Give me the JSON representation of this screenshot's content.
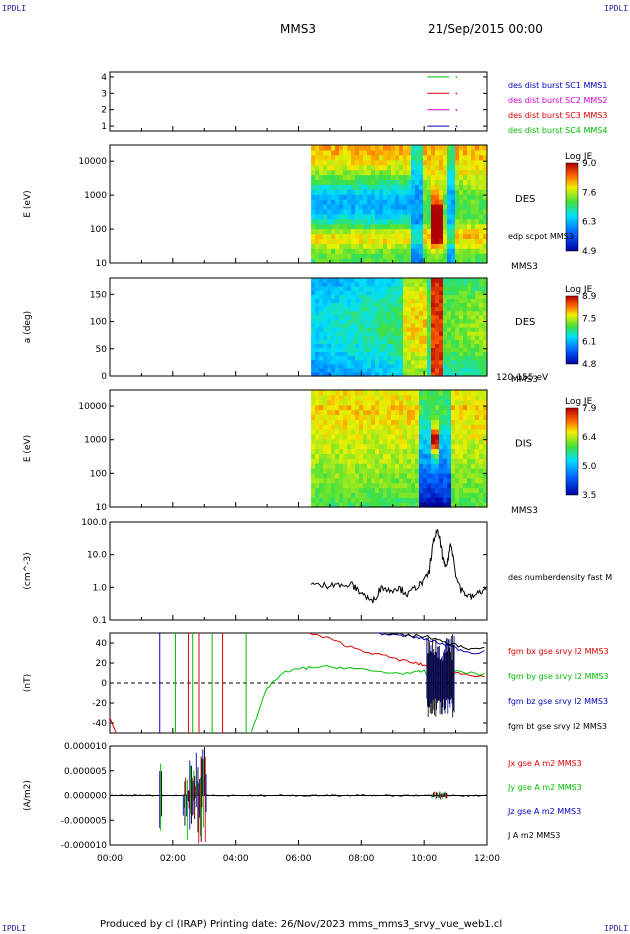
{
  "header": {
    "corner_label": "IPDLI",
    "spacecraft": "MMS3",
    "datetime": "21/Sep/2015 00:00"
  },
  "footer": {
    "text": "Produced by cl (IRAP)   Printing date: 26/Nov/2023   mms_mms3_srvy_vue_web1.cl"
  },
  "colors": {
    "red": "#e00000",
    "green": "#00c000",
    "blue": "#0000c0",
    "magenta": "#d000d0",
    "black": "#000000"
  },
  "chart_data": [
    {
      "type": "line",
      "panel": "burst-flags",
      "xlim": [
        "00:00",
        "12:00"
      ],
      "ylim": [
        0.7,
        4.3
      ],
      "yticks": [
        "1",
        "2",
        "3",
        "4"
      ],
      "series": [
        {
          "name": "des dist burst SC1 MMS1",
          "color": "#0000c0",
          "y": 1
        },
        {
          "name": "des dist burst SC2 MMS2",
          "color": "#d000d0",
          "y": 2
        },
        {
          "name": "des dist burst SC3 MMS3",
          "color": "#e00000",
          "y": 3
        },
        {
          "name": "des dist burst SC4 MMS4",
          "color": "#00c000",
          "y": 4
        }
      ],
      "segments": [
        {
          "y": 4,
          "x": [
            "10:06",
            "10:48"
          ],
          "dot": "11:00"
        },
        {
          "y": 3,
          "x": [
            "10:06",
            "10:48"
          ],
          "dot": "11:00"
        },
        {
          "y": 2,
          "x": [
            "10:06",
            "10:48"
          ],
          "dot": "11:00"
        },
        {
          "y": 1,
          "x": [
            "10:06",
            "10:48"
          ],
          "dot": "11:00"
        }
      ]
    },
    {
      "type": "heatmap",
      "panel": "des-energy",
      "ylabel": "E (eV)",
      "yscale": "log",
      "ylim": [
        10,
        30000
      ],
      "yticks": [
        "10",
        "100",
        "1000",
        "10000"
      ],
      "data_start": "06:24",
      "side_label": "DES",
      "overlay_label": "edp scpot MMS3",
      "sc_label": "MMS3",
      "colorbar": {
        "title": "Log JE",
        "min": 4.9,
        "max": 9.0,
        "ticks": [
          "9.0",
          "7.6",
          "6.3",
          "4.9"
        ]
      }
    },
    {
      "type": "heatmap",
      "panel": "des-pitch",
      "ylabel": "a (deg)",
      "ylim": [
        0,
        180
      ],
      "yticks": [
        "0",
        "50",
        "100",
        "150"
      ],
      "data_start": "06:24",
      "side_label": "DES",
      "sc_label": "MMS3",
      "energy_range": "120-155 eV",
      "colorbar": {
        "title": "Log JE",
        "min": 4.8,
        "max": 8.9,
        "ticks": [
          "8.9",
          "7.5",
          "6.1",
          "4.8"
        ]
      }
    },
    {
      "type": "heatmap",
      "panel": "dis-energy",
      "ylabel": "E (eV)",
      "yscale": "log",
      "ylim": [
        10,
        30000
      ],
      "yticks": [
        "10",
        "100",
        "1000",
        "10000"
      ],
      "data_start": "06:24",
      "side_label": "DIS",
      "sc_label": "MMS3",
      "colorbar": {
        "title": "Log JE",
        "min": 3.5,
        "max": 7.9,
        "ticks": [
          "7.9",
          "6.4",
          "5.0",
          "3.5"
        ]
      }
    },
    {
      "type": "line",
      "panel": "density",
      "ylabel": "(cm^-3)",
      "yscale": "log",
      "ylim": [
        0.1,
        100
      ],
      "yticks": [
        "0.1",
        "1.0",
        "10.0",
        "100.0"
      ],
      "series": [
        {
          "name": "des numberdensity fast M",
          "color": "#000000",
          "x": [
            "06:24",
            "06:40",
            "06:55",
            "07:10",
            "07:25",
            "07:40",
            "07:50",
            "08:00",
            "08:10",
            "08:20",
            "08:30",
            "08:40",
            "08:50",
            "09:00",
            "09:10",
            "09:20",
            "09:30",
            "09:40",
            "09:50",
            "10:00",
            "10:10",
            "10:15",
            "10:20",
            "10:25",
            "10:30",
            "10:35",
            "10:40",
            "10:45",
            "10:50",
            "10:55",
            "11:00",
            "11:10",
            "11:20",
            "11:30",
            "11:40",
            "11:50",
            "12:00"
          ],
          "y": [
            1.3,
            1.1,
            1.2,
            1.4,
            1.0,
            1.3,
            0.9,
            0.7,
            0.5,
            0.35,
            0.6,
            1.1,
            0.8,
            0.9,
            1.0,
            0.8,
            0.6,
            0.9,
            1.2,
            1.5,
            3.0,
            12,
            35,
            50,
            30,
            8,
            4,
            6,
            20,
            10,
            2.0,
            0.9,
            0.6,
            0.5,
            0.6,
            0.8,
            0.9
          ]
        }
      ]
    },
    {
      "type": "line",
      "panel": "fgm",
      "ylabel": "(nT)",
      "ylim": [
        -50,
        50
      ],
      "yticks": [
        "-40",
        "-20",
        "0",
        "20",
        "40"
      ],
      "series": [
        {
          "name": "fgm bx gse srvy l2 MMS3",
          "color": "#e00000",
          "x": [
            "06:20",
            "07:00",
            "07:40",
            "08:20",
            "09:00",
            "09:40",
            "10:00",
            "10:30",
            "11:00",
            "11:30",
            "12:00"
          ],
          "y": [
            50,
            44,
            36,
            30,
            25,
            20,
            18,
            8,
            10,
            8,
            7
          ]
        },
        {
          "name": "fgm by gse srvy l2 MMS3",
          "color": "#00c000",
          "x": [
            "04:30",
            "05:00",
            "05:30",
            "06:00",
            "06:30",
            "07:00",
            "07:40",
            "08:20",
            "09:00",
            "09:40",
            "10:00",
            "10:30",
            "11:00",
            "11:30",
            "12:00"
          ],
          "y": [
            -50,
            -5,
            10,
            14,
            16,
            16,
            15,
            12,
            10,
            10,
            12,
            -10,
            12,
            10,
            8
          ]
        },
        {
          "name": "fgm bz gse srvy l2 MMS3",
          "color": "#0000c0",
          "x": [
            "08:30",
            "09:00",
            "09:30",
            "10:00",
            "10:30",
            "11:00",
            "11:30",
            "12:00"
          ],
          "y": [
            50,
            48,
            47,
            44,
            40,
            35,
            30,
            32
          ]
        },
        {
          "name": "fgm bt gse srvy l2 MMS3",
          "color": "#000000",
          "x": [
            "08:50",
            "09:20",
            "09:50",
            "10:10",
            "10:30",
            "11:00",
            "11:30",
            "12:00"
          ],
          "y": [
            50,
            48,
            47,
            46,
            42,
            38,
            34,
            35
          ]
        }
      ]
    },
    {
      "type": "line",
      "panel": "current",
      "ylabel": "(A/m2)",
      "ylim": [
        -0.0001,
        0.0001
      ],
      "yticks": [
        "-0.000010",
        "-0.000005",
        "0.000000",
        "0.000005",
        "0.000010"
      ],
      "xticks": [
        "00:00",
        "02:00",
        "04:00",
        "06:00",
        "08:00",
        "10:00",
        "12:00"
      ],
      "series": [
        {
          "name": "Jx gse A m2 MMS3",
          "color": "#e00000"
        },
        {
          "name": "Jy gse A m2 MMS3",
          "color": "#00c000"
        },
        {
          "name": "Jz gse A m2 MMS3",
          "color": "#0000c0"
        },
        {
          "name": "J A m2 MMS3",
          "color": "#000000"
        }
      ],
      "burst_intervals": [
        [
          "01:35",
          "01:40"
        ],
        [
          "02:20",
          "03:05"
        ],
        [
          "10:15",
          "10:45"
        ]
      ]
    }
  ]
}
